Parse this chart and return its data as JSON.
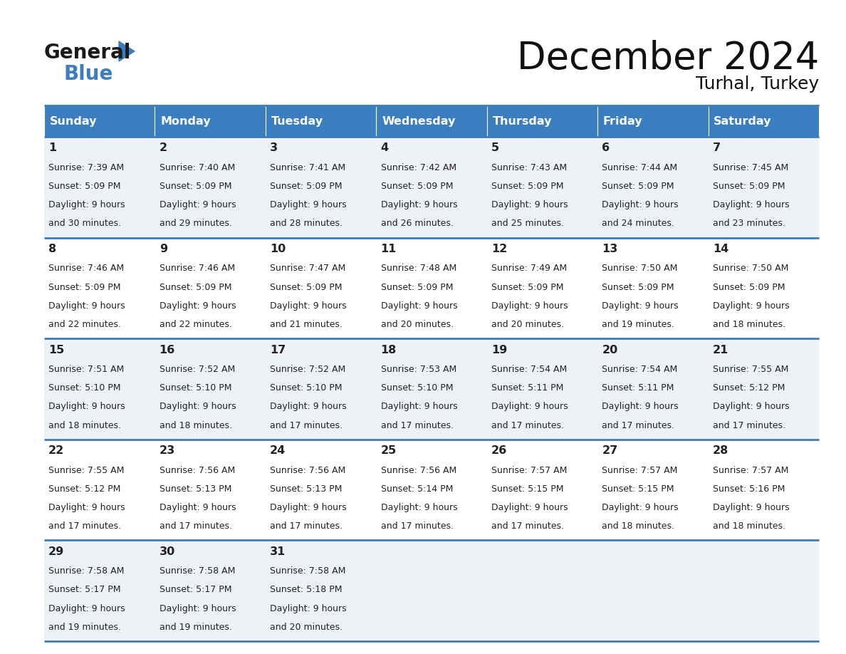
{
  "title": "December 2024",
  "subtitle": "Turhal, Turkey",
  "days_of_week": [
    "Sunday",
    "Monday",
    "Tuesday",
    "Wednesday",
    "Thursday",
    "Friday",
    "Saturday"
  ],
  "header_bg_color": "#3a7ebf",
  "header_text_color": "#ffffff",
  "row_bg_even": "#eef2f7",
  "row_bg_odd": "#ffffff",
  "cell_border_color": "#3a7ebf",
  "day_num_color": "#222222",
  "cell_text_color": "#222222",
  "calendar_data": [
    [
      {
        "day": 1,
        "sunrise": "7:39 AM",
        "sunset": "5:09 PM",
        "daylight": "9 hours and 30 minutes."
      },
      {
        "day": 2,
        "sunrise": "7:40 AM",
        "sunset": "5:09 PM",
        "daylight": "9 hours and 29 minutes."
      },
      {
        "day": 3,
        "sunrise": "7:41 AM",
        "sunset": "5:09 PM",
        "daylight": "9 hours and 28 minutes."
      },
      {
        "day": 4,
        "sunrise": "7:42 AM",
        "sunset": "5:09 PM",
        "daylight": "9 hours and 26 minutes."
      },
      {
        "day": 5,
        "sunrise": "7:43 AM",
        "sunset": "5:09 PM",
        "daylight": "9 hours and 25 minutes."
      },
      {
        "day": 6,
        "sunrise": "7:44 AM",
        "sunset": "5:09 PM",
        "daylight": "9 hours and 24 minutes."
      },
      {
        "day": 7,
        "sunrise": "7:45 AM",
        "sunset": "5:09 PM",
        "daylight": "9 hours and 23 minutes."
      }
    ],
    [
      {
        "day": 8,
        "sunrise": "7:46 AM",
        "sunset": "5:09 PM",
        "daylight": "9 hours and 22 minutes."
      },
      {
        "day": 9,
        "sunrise": "7:46 AM",
        "sunset": "5:09 PM",
        "daylight": "9 hours and 22 minutes."
      },
      {
        "day": 10,
        "sunrise": "7:47 AM",
        "sunset": "5:09 PM",
        "daylight": "9 hours and 21 minutes."
      },
      {
        "day": 11,
        "sunrise": "7:48 AM",
        "sunset": "5:09 PM",
        "daylight": "9 hours and 20 minutes."
      },
      {
        "day": 12,
        "sunrise": "7:49 AM",
        "sunset": "5:09 PM",
        "daylight": "9 hours and 20 minutes."
      },
      {
        "day": 13,
        "sunrise": "7:50 AM",
        "sunset": "5:09 PM",
        "daylight": "9 hours and 19 minutes."
      },
      {
        "day": 14,
        "sunrise": "7:50 AM",
        "sunset": "5:09 PM",
        "daylight": "9 hours and 18 minutes."
      }
    ],
    [
      {
        "day": 15,
        "sunrise": "7:51 AM",
        "sunset": "5:10 PM",
        "daylight": "9 hours and 18 minutes."
      },
      {
        "day": 16,
        "sunrise": "7:52 AM",
        "sunset": "5:10 PM",
        "daylight": "9 hours and 18 minutes."
      },
      {
        "day": 17,
        "sunrise": "7:52 AM",
        "sunset": "5:10 PM",
        "daylight": "9 hours and 17 minutes."
      },
      {
        "day": 18,
        "sunrise": "7:53 AM",
        "sunset": "5:10 PM",
        "daylight": "9 hours and 17 minutes."
      },
      {
        "day": 19,
        "sunrise": "7:54 AM",
        "sunset": "5:11 PM",
        "daylight": "9 hours and 17 minutes."
      },
      {
        "day": 20,
        "sunrise": "7:54 AM",
        "sunset": "5:11 PM",
        "daylight": "9 hours and 17 minutes."
      },
      {
        "day": 21,
        "sunrise": "7:55 AM",
        "sunset": "5:12 PM",
        "daylight": "9 hours and 17 minutes."
      }
    ],
    [
      {
        "day": 22,
        "sunrise": "7:55 AM",
        "sunset": "5:12 PM",
        "daylight": "9 hours and 17 minutes."
      },
      {
        "day": 23,
        "sunrise": "7:56 AM",
        "sunset": "5:13 PM",
        "daylight": "9 hours and 17 minutes."
      },
      {
        "day": 24,
        "sunrise": "7:56 AM",
        "sunset": "5:13 PM",
        "daylight": "9 hours and 17 minutes."
      },
      {
        "day": 25,
        "sunrise": "7:56 AM",
        "sunset": "5:14 PM",
        "daylight": "9 hours and 17 minutes."
      },
      {
        "day": 26,
        "sunrise": "7:57 AM",
        "sunset": "5:15 PM",
        "daylight": "9 hours and 17 minutes."
      },
      {
        "day": 27,
        "sunrise": "7:57 AM",
        "sunset": "5:15 PM",
        "daylight": "9 hours and 18 minutes."
      },
      {
        "day": 28,
        "sunrise": "7:57 AM",
        "sunset": "5:16 PM",
        "daylight": "9 hours and 18 minutes."
      }
    ],
    [
      {
        "day": 29,
        "sunrise": "7:58 AM",
        "sunset": "5:17 PM",
        "daylight": "9 hours and 19 minutes."
      },
      {
        "day": 30,
        "sunrise": "7:58 AM",
        "sunset": "5:17 PM",
        "daylight": "9 hours and 19 minutes."
      },
      {
        "day": 31,
        "sunrise": "7:58 AM",
        "sunset": "5:18 PM",
        "daylight": "9 hours and 20 minutes."
      },
      null,
      null,
      null,
      null
    ]
  ]
}
